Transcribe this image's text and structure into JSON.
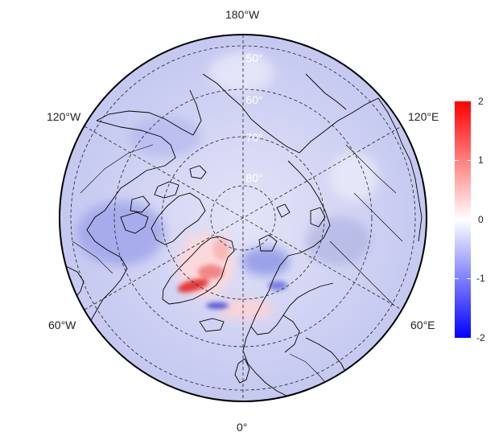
{
  "map": {
    "projection": "north polar stereographic",
    "longitude_labels": {
      "top": "180°W",
      "bottom": "0°",
      "upper_left": "120°W",
      "upper_right": "120°E",
      "lower_left": "60°W",
      "lower_right": "60°E"
    },
    "latitude_labels": [
      "50°",
      "60°",
      "70°",
      "80°"
    ],
    "graticule_style": "dashed"
  },
  "colorbar": {
    "ticks": [
      "2",
      "1",
      "0",
      "-1",
      "-2"
    ],
    "min": -2,
    "max": 2,
    "colors": {
      "high": "#ff0000",
      "mid": "#ffffff",
      "low": "#0000ff"
    }
  }
}
